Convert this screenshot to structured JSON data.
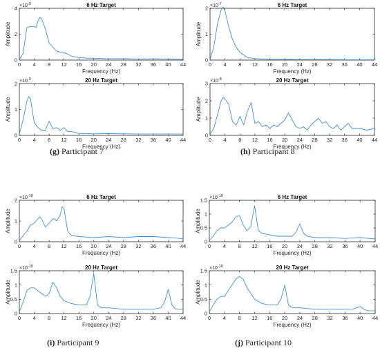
{
  "figure": {
    "captions": [
      {
        "letter": "(g)",
        "text": " Participant 7"
      },
      {
        "letter": "(h)",
        "text": " Participant 8"
      },
      {
        "letter": "(i)",
        "text": " Participant 9"
      },
      {
        "letter": "(j)",
        "text": " Participant 10"
      }
    ]
  },
  "chart_data": [
    {
      "type": "line",
      "title": "6 Hz Target",
      "xlabel": "Frequency (Hz)",
      "ylabel": "Amplitude",
      "xlim": [
        0,
        44
      ],
      "ylim": [
        0,
        4
      ],
      "exponent": "-9",
      "xticks": [
        0,
        4,
        8,
        12,
        16,
        20,
        24,
        28,
        32,
        36,
        40,
        44
      ],
      "yticks": [
        0,
        2,
        4
      ],
      "color": "#3f8fd2",
      "x": [
        0,
        1,
        2,
        3,
        4,
        4.5,
        5,
        5.5,
        6,
        7,
        8,
        9,
        10,
        11,
        12,
        13,
        14,
        16,
        18,
        20,
        24,
        28,
        32,
        36,
        40,
        44
      ],
      "y": [
        0.05,
        0.5,
        2.5,
        2.6,
        2.6,
        2.5,
        3.0,
        3.3,
        3.2,
        2.4,
        1.3,
        1.0,
        0.7,
        0.6,
        0.6,
        0.45,
        0.3,
        0.2,
        0.15,
        0.15,
        0.1,
        0.12,
        0.08,
        0.1,
        0.08,
        0.05
      ]
    },
    {
      "type": "line",
      "title": "6 Hz Target",
      "xlabel": "Frequency (Hz)",
      "ylabel": "Amplitude",
      "xlim": [
        0,
        44
      ],
      "ylim": [
        0,
        2
      ],
      "exponent": "-7",
      "xticks": [
        0,
        4,
        8,
        12,
        16,
        20,
        24,
        28,
        32,
        36,
        40,
        44
      ],
      "yticks": [
        0,
        1,
        2
      ],
      "color": "#3f8fd2",
      "x": [
        0,
        1,
        2,
        3,
        3.5,
        4,
        5,
        6,
        7,
        8,
        9,
        10,
        12,
        14,
        16,
        20,
        24,
        28,
        32,
        36,
        40,
        44
      ],
      "y": [
        0.02,
        0.5,
        1.4,
        1.95,
        2.05,
        1.9,
        1.3,
        0.8,
        0.5,
        0.3,
        0.2,
        0.1,
        0.06,
        0.04,
        0.03,
        0.03,
        0.02,
        0.02,
        0.02,
        0.01,
        0.01,
        0.01
      ]
    },
    {
      "type": "line",
      "title": "20 Hz Target",
      "xlabel": "Frequency (Hz)",
      "ylabel": "Amplitude",
      "xlim": [
        0,
        44
      ],
      "ylim": [
        0,
        2
      ],
      "exponent": "-9",
      "xticks": [
        0,
        4,
        8,
        12,
        16,
        20,
        24,
        28,
        32,
        36,
        40,
        44
      ],
      "yticks": [
        0,
        1,
        2
      ],
      "color": "#3f8fd2",
      "x": [
        0,
        1,
        2,
        2.5,
        3,
        4,
        5,
        6,
        7,
        8,
        9,
        10,
        11,
        12,
        13,
        14,
        16,
        20,
        24,
        28,
        32,
        36,
        40,
        44
      ],
      "y": [
        0.05,
        0.6,
        1.3,
        1.5,
        1.4,
        0.5,
        0.3,
        0.2,
        0.2,
        0.55,
        0.25,
        0.3,
        0.2,
        0.3,
        0.15,
        0.15,
        0.08,
        0.06,
        0.07,
        0.06,
        0.05,
        0.05,
        0.05,
        0.05
      ]
    },
    {
      "type": "line",
      "title": "20 Hz Target",
      "xlabel": "Frequency (Hz)",
      "ylabel": "Amplitude",
      "xlim": [
        0,
        44
      ],
      "ylim": [
        0,
        3
      ],
      "exponent": "-8",
      "xticks": [
        0,
        4,
        8,
        12,
        16,
        20,
        24,
        28,
        32,
        36,
        40,
        44
      ],
      "yticks": [
        0,
        1,
        2,
        3
      ],
      "color": "#3f8fd2",
      "x": [
        0,
        1,
        2,
        3,
        3.5,
        4,
        5,
        6,
        7,
        8,
        9,
        10,
        11,
        12,
        13,
        14,
        15,
        16,
        17,
        18,
        19,
        20,
        21,
        22,
        23,
        24,
        25,
        26,
        27,
        28,
        29,
        30,
        31,
        32,
        33,
        34,
        35,
        36,
        37,
        38,
        40,
        42,
        44
      ],
      "y": [
        0.05,
        0.4,
        1.2,
        2.0,
        2.2,
        2.1,
        1.8,
        0.8,
        0.6,
        1.1,
        0.6,
        1.4,
        1.9,
        0.7,
        0.8,
        0.5,
        0.6,
        0.4,
        0.6,
        0.5,
        0.7,
        0.9,
        1.3,
        0.9,
        0.5,
        0.4,
        0.5,
        0.3,
        0.6,
        0.8,
        1.0,
        0.7,
        0.8,
        0.5,
        0.4,
        0.6,
        0.3,
        0.5,
        0.7,
        0.4,
        0.4,
        0.3,
        0.4
      ]
    },
    {
      "type": "line",
      "title": "6 Hz Target",
      "xlabel": "Frequency (Hz)",
      "ylabel": "Amplitude",
      "xlim": [
        0,
        44
      ],
      "ylim": [
        0,
        2
      ],
      "exponent": "-10",
      "xticks": [
        0,
        4,
        8,
        12,
        16,
        20,
        24,
        28,
        32,
        36,
        40,
        44
      ],
      "yticks": [
        0,
        1,
        2
      ],
      "color": "#3f8fd2",
      "x": [
        0,
        1,
        2,
        3,
        4,
        5,
        5.5,
        6,
        7,
        8,
        9,
        9.5,
        10,
        11,
        11.5,
        12,
        13,
        14,
        16,
        20,
        24,
        28,
        32,
        36,
        40,
        44
      ],
      "y": [
        0.05,
        0.3,
        0.5,
        0.8,
        0.9,
        1.1,
        1.2,
        1.1,
        0.7,
        0.9,
        1.1,
        1.1,
        1.0,
        1.3,
        1.7,
        1.6,
        0.5,
        0.3,
        0.25,
        0.2,
        0.25,
        0.2,
        0.25,
        0.25,
        0.2,
        0.15
      ]
    },
    {
      "type": "line",
      "title": "6 Hz Target",
      "xlabel": "Frequency (Hz)",
      "ylabel": "Amplitude",
      "xlim": [
        0,
        44
      ],
      "ylim": [
        0,
        1.5
      ],
      "exponent": "-10",
      "xticks": [
        0,
        4,
        8,
        12,
        16,
        20,
        24,
        28,
        32,
        36,
        40,
        44
      ],
      "yticks": [
        0,
        0.5,
        1,
        1.5
      ],
      "color": "#3f8fd2",
      "x": [
        0,
        1,
        2,
        3,
        4,
        5,
        6,
        7,
        8,
        9,
        10,
        11,
        12,
        13,
        14,
        16,
        18,
        20,
        22,
        23,
        24,
        25,
        26,
        28,
        32,
        36,
        40,
        44
      ],
      "y": [
        0.05,
        0.2,
        0.4,
        0.5,
        0.5,
        0.6,
        0.7,
        0.9,
        0.95,
        0.6,
        0.4,
        0.55,
        1.3,
        0.4,
        0.3,
        0.25,
        0.2,
        0.2,
        0.2,
        0.35,
        0.65,
        0.3,
        0.2,
        0.15,
        0.15,
        0.12,
        0.15,
        0.1
      ]
    },
    {
      "type": "line",
      "title": "20 Hz Target",
      "xlabel": "Frequency (Hz)",
      "ylabel": "Amplitude",
      "xlim": [
        0,
        44
      ],
      "ylim": [
        0,
        1.5
      ],
      "exponent": "-10",
      "xticks": [
        0,
        4,
        8,
        12,
        16,
        20,
        24,
        28,
        32,
        36,
        40,
        44
      ],
      "yticks": [
        0,
        0.5,
        1,
        1.5
      ],
      "color": "#3f8fd2",
      "x": [
        0,
        1,
        2,
        3,
        4,
        5,
        6,
        7,
        8,
        9,
        10,
        11,
        12,
        14,
        16,
        18,
        19,
        20,
        21,
        22,
        24,
        28,
        32,
        36,
        38,
        39,
        40,
        41,
        42,
        44
      ],
      "y": [
        0.05,
        0.4,
        0.8,
        0.9,
        0.9,
        0.8,
        0.7,
        0.6,
        0.7,
        1.1,
        0.9,
        0.6,
        0.45,
        0.35,
        0.3,
        0.3,
        0.6,
        1.4,
        0.3,
        0.2,
        0.2,
        0.15,
        0.15,
        0.15,
        0.2,
        0.4,
        0.85,
        0.3,
        0.15,
        0.15
      ]
    },
    {
      "type": "line",
      "title": "20 Hz Target",
      "xlabel": "Frequency (Hz)",
      "ylabel": "Amplitude",
      "xlim": [
        0,
        44
      ],
      "ylim": [
        0,
        1.5
      ],
      "exponent": "-10",
      "xticks": [
        0,
        4,
        8,
        12,
        16,
        20,
        24,
        28,
        32,
        36,
        40,
        44
      ],
      "yticks": [
        0,
        0.5,
        1,
        1.5
      ],
      "color": "#3f8fd2",
      "x": [
        0,
        1,
        2,
        3,
        4,
        5,
        6,
        7,
        8,
        9,
        10,
        12,
        14,
        16,
        18,
        19,
        20,
        21,
        22,
        24,
        28,
        32,
        36,
        38,
        40,
        41,
        42,
        44
      ],
      "y": [
        0.05,
        0.3,
        0.5,
        0.6,
        0.6,
        0.8,
        1.0,
        1.2,
        1.3,
        1.2,
        0.9,
        0.5,
        0.35,
        0.3,
        0.3,
        0.5,
        1.0,
        0.3,
        0.2,
        0.2,
        0.15,
        0.15,
        0.15,
        0.15,
        0.25,
        0.15,
        0.1,
        0.1
      ]
    }
  ]
}
